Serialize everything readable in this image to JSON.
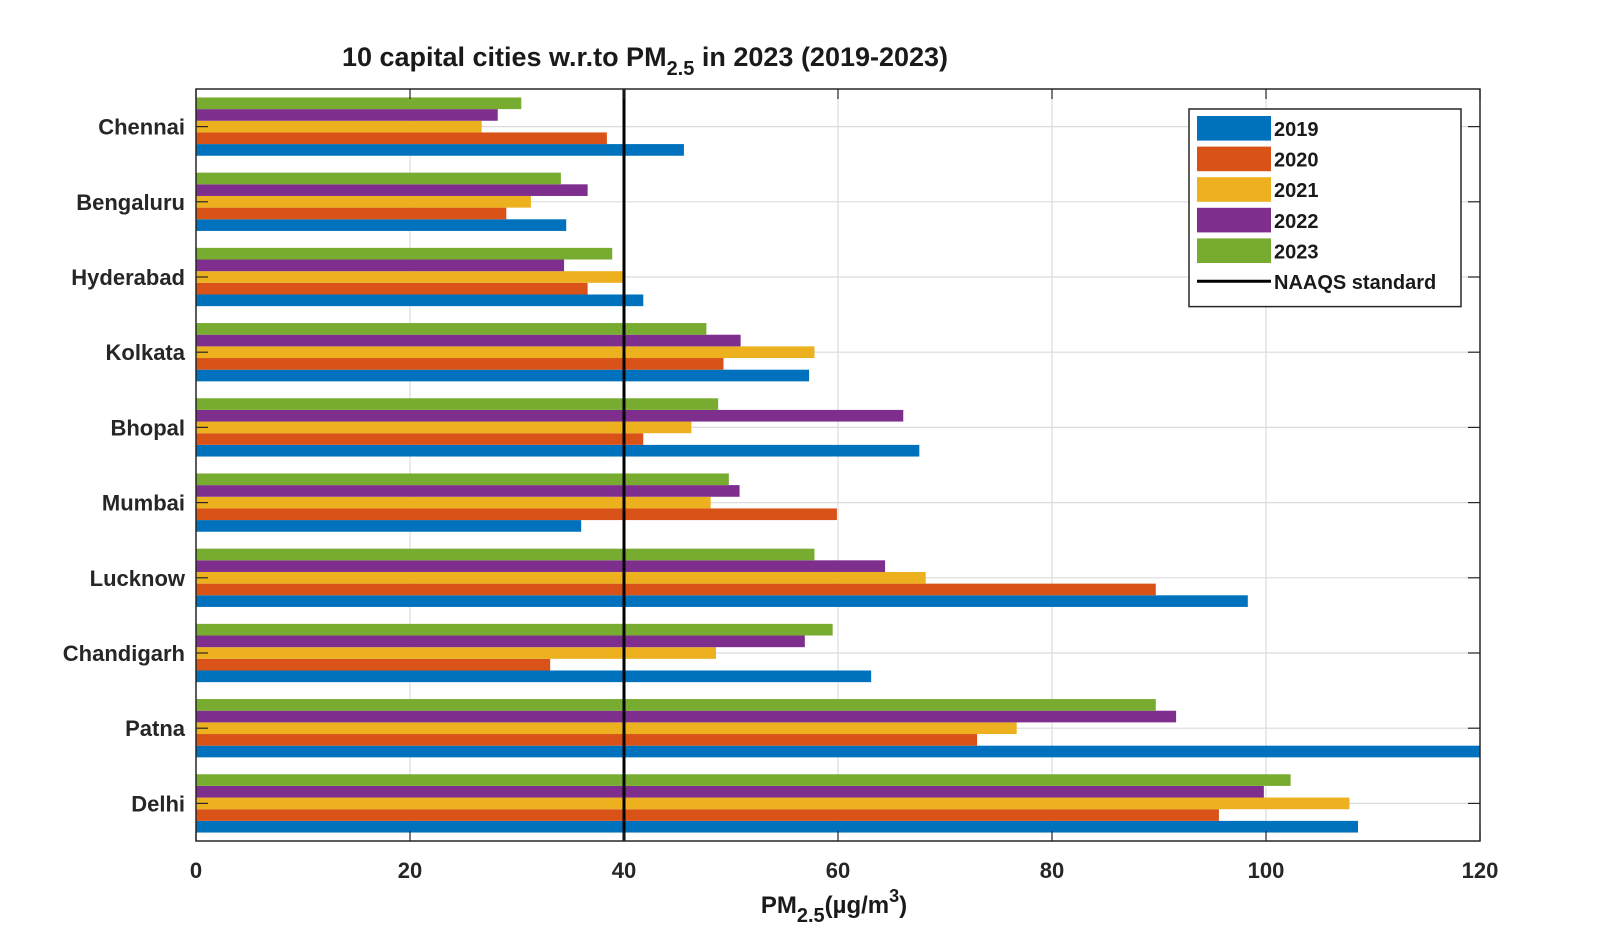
{
  "chart_data": {
    "type": "bar",
    "orientation": "horizontal",
    "title": {
      "prefix": "10 capital cities w.r.to PM",
      "subscript": "2.5",
      "suffix": " in 2023 (2019-2023)"
    },
    "xlabel": {
      "prefix": "PM",
      "subscript": "2.5",
      "middle": "(µg/m",
      "superscript": "3",
      "suffix": ")"
    },
    "xlim": [
      0,
      120
    ],
    "xticks": [
      0,
      20,
      40,
      60,
      80,
      100,
      120
    ],
    "xtick_labels": [
      "0",
      "20",
      "40",
      "60",
      "80",
      "100",
      "120"
    ],
    "grid": true,
    "legend_position": "top-right",
    "categories": [
      "Delhi",
      "Patna",
      "Chandigarh",
      "Lucknow",
      "Mumbai",
      "Bhopal",
      "Kolkata",
      "Hyderabad",
      "Bengaluru",
      "Chennai"
    ],
    "series": [
      {
        "name": "2019",
        "color": "#0072BD",
        "values": [
          108.6,
          120,
          63.1,
          98.3,
          36.0,
          67.6,
          57.3,
          41.8,
          34.6,
          45.6
        ]
      },
      {
        "name": "2020",
        "color": "#D95319",
        "values": [
          95.6,
          73.0,
          33.1,
          89.7,
          59.9,
          41.8,
          49.3,
          36.6,
          29.0,
          38.4
        ]
      },
      {
        "name": "2021",
        "color": "#EDB120",
        "values": [
          107.8,
          76.7,
          48.6,
          68.2,
          48.1,
          46.3,
          57.8,
          39.9,
          31.3,
          26.7
        ]
      },
      {
        "name": "2022",
        "color": "#7E2F8E",
        "values": [
          99.8,
          91.6,
          56.9,
          64.4,
          50.8,
          66.1,
          50.9,
          34.4,
          36.6,
          28.2
        ]
      },
      {
        "name": "2023",
        "color": "#77AC30",
        "values": [
          102.3,
          89.7,
          59.5,
          57.8,
          49.8,
          48.8,
          47.7,
          38.9,
          34.1,
          30.4
        ]
      }
    ],
    "reference_line": {
      "name": "NAAQS standard",
      "value": 40,
      "color": "#000000"
    }
  }
}
